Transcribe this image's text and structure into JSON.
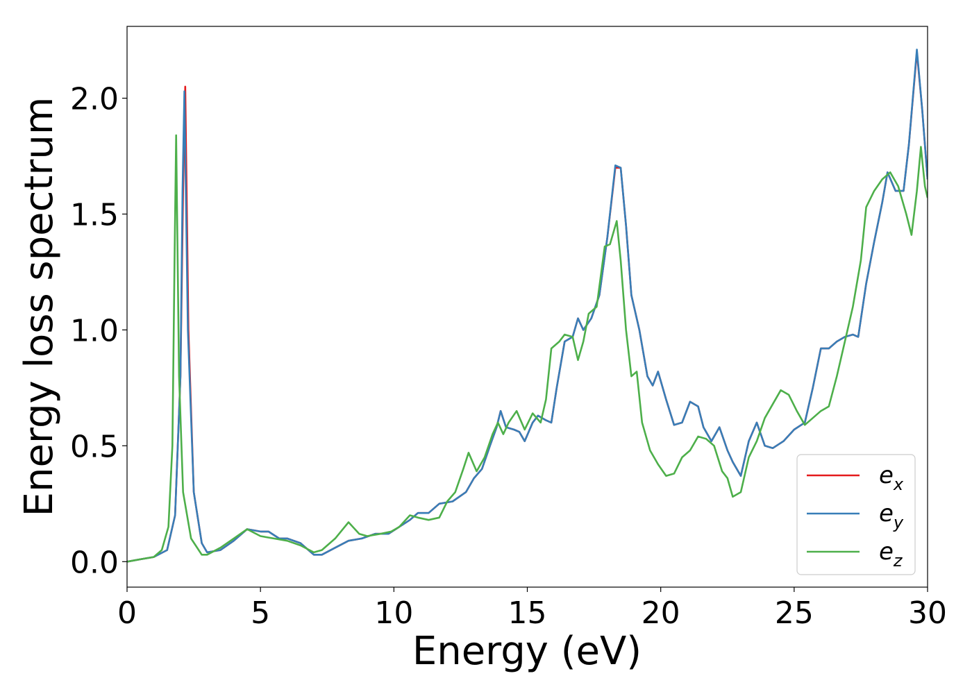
{
  "chart_data": {
    "type": "line",
    "title": "",
    "xlabel": "Energy (eV)",
    "ylabel": "Energy loss spectrum",
    "xlim": [
      0,
      30
    ],
    "ylim": [
      -0.11,
      2.31
    ],
    "x_ticks": [
      0,
      5,
      10,
      15,
      20,
      25,
      30
    ],
    "x_tick_labels": [
      "0",
      "5",
      "10",
      "15",
      "20",
      "25",
      "30"
    ],
    "y_ticks": [
      0.0,
      0.5,
      1.0,
      1.5,
      2.0
    ],
    "y_tick_labels": [
      "0.0",
      "0.5",
      "1.0",
      "1.5",
      "2.0"
    ],
    "grid": false,
    "legend_position": "bottom-right",
    "series": [
      {
        "name": "e_x",
        "label_main": "e",
        "label_sub": "x",
        "color": "#e41a1c",
        "points": [
          [
            0,
            0
          ],
          [
            0.5,
            0.01
          ],
          [
            1,
            0.02
          ],
          [
            1.5,
            0.05
          ],
          [
            1.8,
            0.2
          ],
          [
            2,
            0.8
          ],
          [
            2.1,
            1.6
          ],
          [
            2.18,
            2.05
          ],
          [
            2.3,
            1.0
          ],
          [
            2.5,
            0.3
          ],
          [
            2.8,
            0.08
          ],
          [
            3,
            0.04
          ],
          [
            3.5,
            0.05
          ],
          [
            4,
            0.09
          ],
          [
            4.5,
            0.14
          ],
          [
            5,
            0.13
          ],
          [
            5.3,
            0.13
          ],
          [
            5.7,
            0.1
          ],
          [
            6,
            0.1
          ],
          [
            6.5,
            0.08
          ],
          [
            7,
            0.03
          ],
          [
            7.3,
            0.03
          ],
          [
            7.8,
            0.06
          ],
          [
            8.3,
            0.09
          ],
          [
            8.8,
            0.1
          ],
          [
            9.3,
            0.12
          ],
          [
            9.8,
            0.12
          ],
          [
            10.2,
            0.15
          ],
          [
            10.6,
            0.18
          ],
          [
            10.9,
            0.21
          ],
          [
            11.3,
            0.21
          ],
          [
            11.7,
            0.25
          ],
          [
            12.2,
            0.26
          ],
          [
            12.7,
            0.3
          ],
          [
            13,
            0.36
          ],
          [
            13.3,
            0.4
          ],
          [
            13.6,
            0.5
          ],
          [
            13.85,
            0.58
          ],
          [
            14,
            0.65
          ],
          [
            14.2,
            0.58
          ],
          [
            14.5,
            0.57
          ],
          [
            14.7,
            0.56
          ],
          [
            14.9,
            0.52
          ],
          [
            15.2,
            0.6
          ],
          [
            15.4,
            0.63
          ],
          [
            15.7,
            0.61
          ],
          [
            15.9,
            0.6
          ],
          [
            16.1,
            0.75
          ],
          [
            16.4,
            0.95
          ],
          [
            16.7,
            0.97
          ],
          [
            16.9,
            1.05
          ],
          [
            17.1,
            1.0
          ],
          [
            17.4,
            1.05
          ],
          [
            17.7,
            1.15
          ],
          [
            18,
            1.4
          ],
          [
            18.3,
            1.7
          ],
          [
            18.5,
            1.7
          ],
          [
            18.7,
            1.45
          ],
          [
            18.9,
            1.15
          ],
          [
            19.2,
            1.0
          ],
          [
            19.5,
            0.8
          ],
          [
            19.7,
            0.76
          ],
          [
            19.9,
            0.82
          ],
          [
            20.2,
            0.7
          ],
          [
            20.5,
            0.59
          ],
          [
            20.8,
            0.6
          ],
          [
            21.1,
            0.69
          ],
          [
            21.4,
            0.67
          ],
          [
            21.6,
            0.58
          ],
          [
            21.9,
            0.52
          ],
          [
            22.2,
            0.58
          ],
          [
            22.5,
            0.48
          ],
          [
            22.7,
            0.43
          ],
          [
            23,
            0.37
          ],
          [
            23.3,
            0.52
          ],
          [
            23.6,
            0.6
          ],
          [
            23.9,
            0.5
          ],
          [
            24.2,
            0.49
          ],
          [
            24.6,
            0.52
          ],
          [
            25,
            0.57
          ],
          [
            25.4,
            0.6
          ],
          [
            25.7,
            0.75
          ],
          [
            26,
            0.92
          ],
          [
            26.3,
            0.92
          ],
          [
            26.6,
            0.95
          ],
          [
            26.9,
            0.97
          ],
          [
            27.2,
            0.98
          ],
          [
            27.4,
            0.97
          ],
          [
            27.7,
            1.2
          ],
          [
            28,
            1.38
          ],
          [
            28.3,
            1.55
          ],
          [
            28.5,
            1.68
          ],
          [
            28.8,
            1.6
          ],
          [
            29.1,
            1.6
          ],
          [
            29.3,
            1.8
          ],
          [
            29.6,
            2.2
          ],
          [
            29.8,
            1.95
          ],
          [
            30,
            1.65
          ]
        ]
      },
      {
        "name": "e_y",
        "label_main": "e",
        "label_sub": "y",
        "color": "#377eb8",
        "points": [
          [
            0,
            0
          ],
          [
            0.5,
            0.01
          ],
          [
            1,
            0.02
          ],
          [
            1.5,
            0.05
          ],
          [
            1.8,
            0.2
          ],
          [
            2,
            0.8
          ],
          [
            2.08,
            1.6
          ],
          [
            2.15,
            2.03
          ],
          [
            2.28,
            1.0
          ],
          [
            2.5,
            0.3
          ],
          [
            2.8,
            0.08
          ],
          [
            3,
            0.04
          ],
          [
            3.5,
            0.05
          ],
          [
            4,
            0.09
          ],
          [
            4.5,
            0.14
          ],
          [
            5,
            0.13
          ],
          [
            5.3,
            0.13
          ],
          [
            5.7,
            0.1
          ],
          [
            6,
            0.1
          ],
          [
            6.5,
            0.08
          ],
          [
            7,
            0.03
          ],
          [
            7.3,
            0.03
          ],
          [
            7.8,
            0.06
          ],
          [
            8.3,
            0.09
          ],
          [
            8.8,
            0.1
          ],
          [
            9.3,
            0.12
          ],
          [
            9.8,
            0.12
          ],
          [
            10.2,
            0.15
          ],
          [
            10.6,
            0.18
          ],
          [
            10.9,
            0.21
          ],
          [
            11.3,
            0.21
          ],
          [
            11.7,
            0.25
          ],
          [
            12.2,
            0.26
          ],
          [
            12.7,
            0.3
          ],
          [
            13,
            0.36
          ],
          [
            13.3,
            0.4
          ],
          [
            13.6,
            0.5
          ],
          [
            13.85,
            0.58
          ],
          [
            14,
            0.65
          ],
          [
            14.2,
            0.58
          ],
          [
            14.5,
            0.57
          ],
          [
            14.7,
            0.56
          ],
          [
            14.9,
            0.52
          ],
          [
            15.2,
            0.6
          ],
          [
            15.4,
            0.63
          ],
          [
            15.7,
            0.61
          ],
          [
            15.9,
            0.6
          ],
          [
            16.1,
            0.75
          ],
          [
            16.4,
            0.95
          ],
          [
            16.7,
            0.97
          ],
          [
            16.9,
            1.05
          ],
          [
            17.1,
            1.0
          ],
          [
            17.4,
            1.05
          ],
          [
            17.7,
            1.15
          ],
          [
            18,
            1.4
          ],
          [
            18.3,
            1.71
          ],
          [
            18.5,
            1.7
          ],
          [
            18.7,
            1.45
          ],
          [
            18.9,
            1.15
          ],
          [
            19.2,
            1.0
          ],
          [
            19.5,
            0.8
          ],
          [
            19.7,
            0.76
          ],
          [
            19.9,
            0.82
          ],
          [
            20.2,
            0.7
          ],
          [
            20.5,
            0.59
          ],
          [
            20.8,
            0.6
          ],
          [
            21.1,
            0.69
          ],
          [
            21.4,
            0.67
          ],
          [
            21.6,
            0.58
          ],
          [
            21.9,
            0.52
          ],
          [
            22.2,
            0.58
          ],
          [
            22.5,
            0.48
          ],
          [
            22.7,
            0.43
          ],
          [
            23,
            0.37
          ],
          [
            23.3,
            0.52
          ],
          [
            23.6,
            0.6
          ],
          [
            23.9,
            0.5
          ],
          [
            24.2,
            0.49
          ],
          [
            24.6,
            0.52
          ],
          [
            25,
            0.57
          ],
          [
            25.4,
            0.6
          ],
          [
            25.7,
            0.75
          ],
          [
            26,
            0.92
          ],
          [
            26.3,
            0.92
          ],
          [
            26.6,
            0.95
          ],
          [
            26.9,
            0.97
          ],
          [
            27.2,
            0.98
          ],
          [
            27.4,
            0.97
          ],
          [
            27.7,
            1.2
          ],
          [
            28,
            1.38
          ],
          [
            28.3,
            1.55
          ],
          [
            28.5,
            1.68
          ],
          [
            28.8,
            1.6
          ],
          [
            29.1,
            1.6
          ],
          [
            29.3,
            1.8
          ],
          [
            29.6,
            2.21
          ],
          [
            29.8,
            1.95
          ],
          [
            30,
            1.65
          ]
        ]
      },
      {
        "name": "e_z",
        "label_main": "e",
        "label_sub": "z",
        "color": "#4daf4a",
        "points": [
          [
            0,
            0
          ],
          [
            0.5,
            0.01
          ],
          [
            1,
            0.02
          ],
          [
            1.3,
            0.05
          ],
          [
            1.55,
            0.15
          ],
          [
            1.7,
            0.5
          ],
          [
            1.78,
            1.3
          ],
          [
            1.84,
            1.84
          ],
          [
            1.95,
            0.8
          ],
          [
            2.1,
            0.3
          ],
          [
            2.4,
            0.1
          ],
          [
            2.8,
            0.03
          ],
          [
            3,
            0.03
          ],
          [
            3.5,
            0.06
          ],
          [
            4,
            0.1
          ],
          [
            4.5,
            0.14
          ],
          [
            5,
            0.11
          ],
          [
            5.5,
            0.1
          ],
          [
            6,
            0.09
          ],
          [
            6.5,
            0.07
          ],
          [
            7,
            0.04
          ],
          [
            7.3,
            0.05
          ],
          [
            7.8,
            0.1
          ],
          [
            8.3,
            0.17
          ],
          [
            8.7,
            0.12
          ],
          [
            9,
            0.11
          ],
          [
            9.5,
            0.12
          ],
          [
            9.9,
            0.13
          ],
          [
            10.2,
            0.15
          ],
          [
            10.6,
            0.2
          ],
          [
            10.9,
            0.19
          ],
          [
            11.3,
            0.18
          ],
          [
            11.7,
            0.19
          ],
          [
            12,
            0.26
          ],
          [
            12.3,
            0.3
          ],
          [
            12.6,
            0.4
          ],
          [
            12.8,
            0.47
          ],
          [
            13.1,
            0.39
          ],
          [
            13.4,
            0.45
          ],
          [
            13.7,
            0.55
          ],
          [
            13.9,
            0.6
          ],
          [
            14.1,
            0.55
          ],
          [
            14.3,
            0.6
          ],
          [
            14.6,
            0.65
          ],
          [
            14.9,
            0.57
          ],
          [
            15.2,
            0.64
          ],
          [
            15.5,
            0.6
          ],
          [
            15.7,
            0.7
          ],
          [
            15.9,
            0.92
          ],
          [
            16.2,
            0.95
          ],
          [
            16.4,
            0.98
          ],
          [
            16.7,
            0.97
          ],
          [
            16.9,
            0.87
          ],
          [
            17.1,
            0.95
          ],
          [
            17.3,
            1.07
          ],
          [
            17.6,
            1.1
          ],
          [
            17.9,
            1.36
          ],
          [
            18.1,
            1.37
          ],
          [
            18.35,
            1.47
          ],
          [
            18.5,
            1.3
          ],
          [
            18.7,
            1.0
          ],
          [
            18.9,
            0.8
          ],
          [
            19.1,
            0.82
          ],
          [
            19.3,
            0.6
          ],
          [
            19.6,
            0.48
          ],
          [
            19.9,
            0.42
          ],
          [
            20.2,
            0.37
          ],
          [
            20.5,
            0.38
          ],
          [
            20.8,
            0.45
          ],
          [
            21.1,
            0.48
          ],
          [
            21.4,
            0.54
          ],
          [
            21.7,
            0.53
          ],
          [
            22,
            0.5
          ],
          [
            22.3,
            0.39
          ],
          [
            22.5,
            0.36
          ],
          [
            22.7,
            0.28
          ],
          [
            23,
            0.3
          ],
          [
            23.3,
            0.45
          ],
          [
            23.6,
            0.52
          ],
          [
            23.9,
            0.62
          ],
          [
            24.2,
            0.68
          ],
          [
            24.5,
            0.74
          ],
          [
            24.8,
            0.72
          ],
          [
            25.1,
            0.65
          ],
          [
            25.4,
            0.59
          ],
          [
            25.7,
            0.62
          ],
          [
            26,
            0.65
          ],
          [
            26.3,
            0.67
          ],
          [
            26.6,
            0.8
          ],
          [
            26.9,
            0.95
          ],
          [
            27.2,
            1.1
          ],
          [
            27.5,
            1.3
          ],
          [
            27.7,
            1.53
          ],
          [
            28,
            1.6
          ],
          [
            28.3,
            1.65
          ],
          [
            28.6,
            1.68
          ],
          [
            28.9,
            1.62
          ],
          [
            29.2,
            1.5
          ],
          [
            29.4,
            1.41
          ],
          [
            29.6,
            1.6
          ],
          [
            29.75,
            1.79
          ],
          [
            29.9,
            1.62
          ],
          [
            30,
            1.57
          ]
        ]
      }
    ]
  }
}
